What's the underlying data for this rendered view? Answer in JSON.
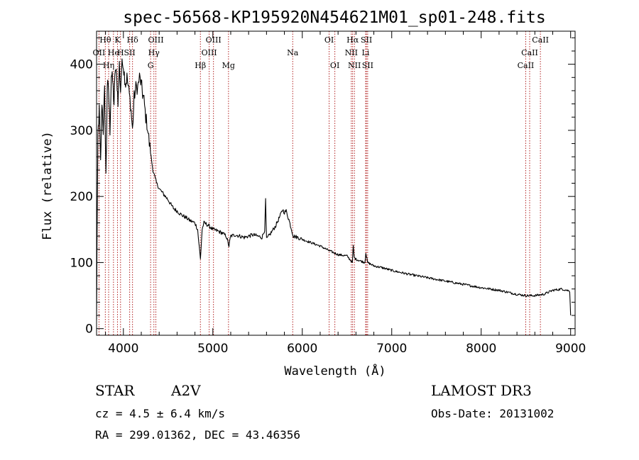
{
  "chart_data": {
    "type": "line",
    "title": "spec-56568-KP195920N454621M01_sp01-248.fits",
    "xlabel": "Wavelength (Å)",
    "ylabel": "Flux (relative)",
    "xlim": [
      3700,
      9050
    ],
    "ylim": [
      -10,
      450
    ],
    "xticks": [
      4000,
      5000,
      6000,
      7000,
      8000,
      9000
    ],
    "yticks": [
      0,
      100,
      200,
      300,
      400
    ],
    "xtick_labels": [
      "4000",
      "5000",
      "6000",
      "7000",
      "8000",
      "9000"
    ],
    "ytick_labels": [
      "0",
      "100",
      "200",
      "300",
      "400"
    ],
    "series": [
      {
        "name": "flux",
        "color": "#000000",
        "points": [
          [
            3700,
            10
          ],
          [
            3705,
            120
          ],
          [
            3715,
            290
          ],
          [
            3730,
            330
          ],
          [
            3745,
            250
          ],
          [
            3760,
            345
          ],
          [
            3775,
            300
          ],
          [
            3790,
            360
          ],
          [
            3805,
            230
          ],
          [
            3820,
            370
          ],
          [
            3835,
            360
          ],
          [
            3850,
            300
          ],
          [
            3865,
            385
          ],
          [
            3880,
            375
          ],
          [
            3895,
            340
          ],
          [
            3910,
            395
          ],
          [
            3925,
            380
          ],
          [
            3940,
            345
          ],
          [
            3955,
            400
          ],
          [
            3968,
            360
          ],
          [
            3980,
            395
          ],
          [
            3995,
            405
          ],
          [
            4010,
            385
          ],
          [
            4025,
            370
          ],
          [
            4040,
            380
          ],
          [
            4060,
            360
          ],
          [
            4080,
            340
          ],
          [
            4102,
            300
          ],
          [
            4120,
            350
          ],
          [
            4140,
            365
          ],
          [
            4160,
            365
          ],
          [
            4180,
            380
          ],
          [
            4200,
            370
          ],
          [
            4215,
            355
          ],
          [
            4230,
            345
          ],
          [
            4250,
            320
          ],
          [
            4270,
            305
          ],
          [
            4290,
            280
          ],
          [
            4310,
            260
          ],
          [
            4330,
            240
          ],
          [
            4350,
            230
          ],
          [
            4370,
            220
          ],
          [
            4390,
            215
          ],
          [
            4410,
            210
          ],
          [
            4440,
            205
          ],
          [
            4470,
            200
          ],
          [
            4500,
            195
          ],
          [
            4530,
            188
          ],
          [
            4560,
            182
          ],
          [
            4600,
            178
          ],
          [
            4650,
            172
          ],
          [
            4700,
            168
          ],
          [
            4750,
            163
          ],
          [
            4800,
            160
          ],
          [
            4830,
            150
          ],
          [
            4861,
            105
          ],
          [
            4880,
            150
          ],
          [
            4900,
            160
          ],
          [
            4930,
            158
          ],
          [
            4960,
            155
          ],
          [
            5000,
            150
          ],
          [
            5050,
            148
          ],
          [
            5100,
            145
          ],
          [
            5150,
            140
          ],
          [
            5180,
            125
          ],
          [
            5200,
            140
          ],
          [
            5250,
            142
          ],
          [
            5300,
            140
          ],
          [
            5350,
            138
          ],
          [
            5400,
            140
          ],
          [
            5450,
            142
          ],
          [
            5500,
            140
          ],
          [
            5550,
            138
          ],
          [
            5580,
            150
          ],
          [
            5590,
            195
          ],
          [
            5600,
            135
          ],
          [
            5650,
            145
          ],
          [
            5700,
            155
          ],
          [
            5750,
            170
          ],
          [
            5780,
            180
          ],
          [
            5800,
            176
          ],
          [
            5820,
            178
          ],
          [
            5850,
            165
          ],
          [
            5880,
            150
          ],
          [
            5900,
            140
          ],
          [
            5950,
            138
          ],
          [
            6000,
            135
          ],
          [
            6100,
            130
          ],
          [
            6200,
            125
          ],
          [
            6300,
            118
          ],
          [
            6400,
            112
          ],
          [
            6500,
            110
          ],
          [
            6560,
            100
          ],
          [
            6570,
            125
          ],
          [
            6580,
            108
          ],
          [
            6600,
            105
          ],
          [
            6700,
            100
          ],
          [
            6710,
            115
          ],
          [
            6730,
            100
          ],
          [
            6800,
            95
          ],
          [
            6900,
            92
          ],
          [
            7000,
            88
          ],
          [
            7200,
            82
          ],
          [
            7400,
            77
          ],
          [
            7600,
            72
          ],
          [
            7800,
            67
          ],
          [
            8000,
            62
          ],
          [
            8200,
            58
          ],
          [
            8400,
            52
          ],
          [
            8500,
            50
          ],
          [
            8600,
            50
          ],
          [
            8700,
            52
          ],
          [
            8800,
            58
          ],
          [
            8900,
            60
          ],
          [
            8990,
            57
          ],
          [
            9000,
            20
          ]
        ]
      }
    ],
    "line_ids": [
      {
        "label": "Hθ",
        "x": 3798,
        "row": 0
      },
      {
        "label": "K",
        "x": 3934,
        "row": 0
      },
      {
        "label": "Hδ",
        "x": 4102,
        "row": 0
      },
      {
        "label": "OIII",
        "x": 4363,
        "row": 0
      },
      {
        "label": "OIII",
        "x": 5007,
        "row": 0
      },
      {
        "label": "OI",
        "x": 6300,
        "row": 0
      },
      {
        "label": "Hα",
        "x": 6563,
        "row": 0
      },
      {
        "label": "SII",
        "x": 6717,
        "row": 0
      },
      {
        "label": "CaII",
        "x": 8662,
        "row": 0
      },
      {
        "label": "OII",
        "x": 3727,
        "row": 1
      },
      {
        "label": "He",
        "x": 3889,
        "row": 1
      },
      {
        "label": "H",
        "x": 3968,
        "row": 1
      },
      {
        "label": "SII",
        "x": 4070,
        "row": 1
      },
      {
        "label": "Hγ",
        "x": 4341,
        "row": 1
      },
      {
        "label": "OIII",
        "x": 4959,
        "row": 1
      },
      {
        "label": "Na",
        "x": 5893,
        "row": 1
      },
      {
        "label": "NII",
        "x": 6548,
        "row": 1
      },
      {
        "label": "Li",
        "x": 6708,
        "row": 1
      },
      {
        "label": "CaII",
        "x": 8542,
        "row": 1
      },
      {
        "label": "Hη",
        "x": 3835,
        "row": 2
      },
      {
        "label": "G",
        "x": 4304,
        "row": 2
      },
      {
        "label": "Hβ",
        "x": 4861,
        "row": 2
      },
      {
        "label": "Mg",
        "x": 5175,
        "row": 2
      },
      {
        "label": "OI",
        "x": 6364,
        "row": 2
      },
      {
        "label": "NII",
        "x": 6583,
        "row": 2
      },
      {
        "label": "SII",
        "x": 6731,
        "row": 2
      },
      {
        "label": "CaII",
        "x": 8498,
        "row": 2
      }
    ],
    "line_color": "#b22222"
  },
  "info": {
    "object_class": "STAR",
    "subclass": "A2V",
    "survey": "LAMOST DR3",
    "cz": "cz = 4.5 ± 6.4 km/s",
    "obs_date": "Obs-Date: 20131002",
    "coords": "RA = 299.01362, DEC =  43.46356"
  }
}
